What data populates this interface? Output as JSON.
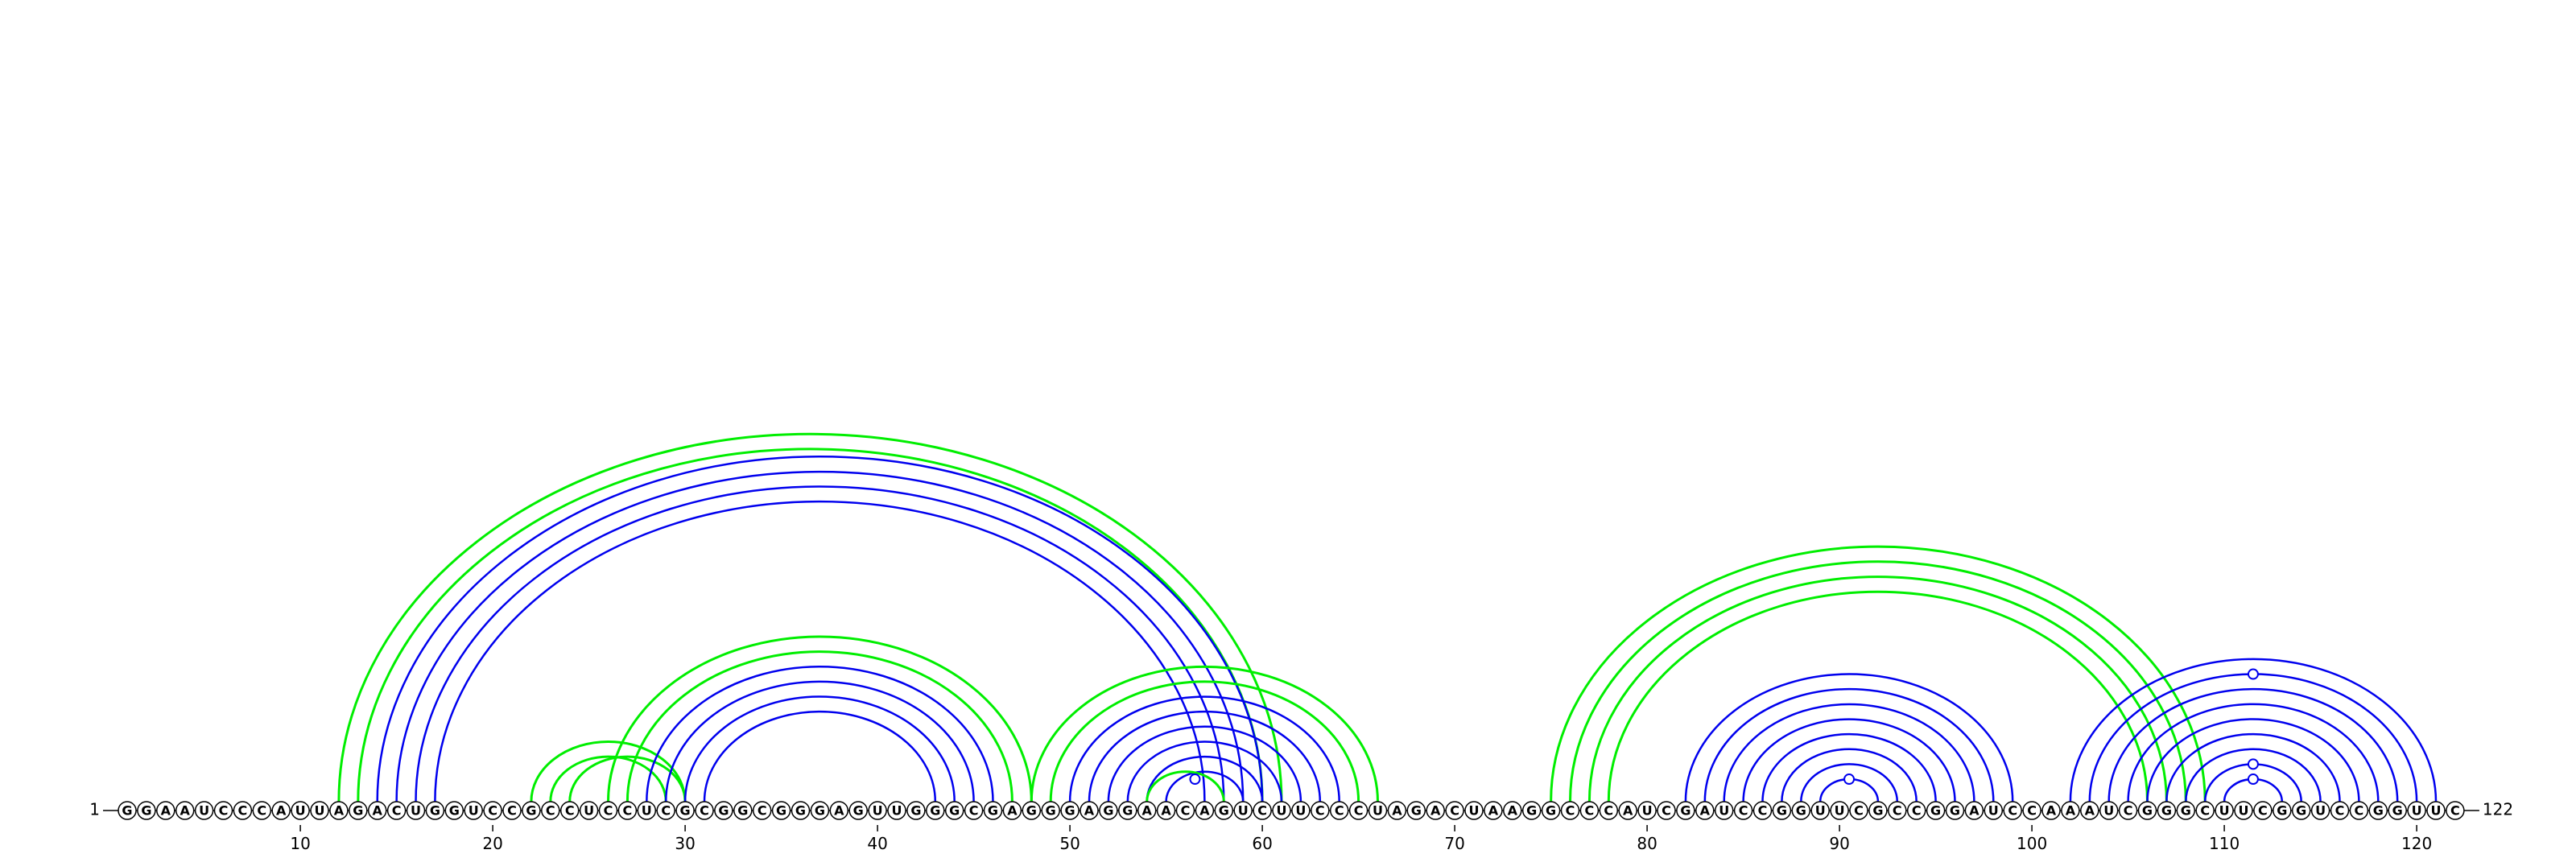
{
  "sequence": "GGAAUCCCAUUAGACUGGUCCGCCUCCUCGCGGCGGGAGUUGGGCGAGGGAGGAACAGUCUUCCCUAGACUAAGGCCCAUCGAUCCGGUUCGCCGGAUCCAAAUCGGGCUUCGGUCCGGUUC",
  "start_label": "1",
  "end_label": "122",
  "axis": {
    "ticks": [
      10,
      20,
      30,
      40,
      50,
      60,
      70,
      80,
      90,
      100,
      110,
      120
    ]
  },
  "colors": {
    "blue": "#0000ee",
    "green": "#00ee00",
    "nucleotide_fill": "#ffffff",
    "nucleotide_stroke": "#000000"
  },
  "arcs": [
    {
      "i": 12,
      "j": 61,
      "color": "green"
    },
    {
      "i": 13,
      "j": 60,
      "color": "green"
    },
    {
      "i": 14,
      "j": 60,
      "color": "blue"
    },
    {
      "i": 15,
      "j": 59,
      "color": "blue"
    },
    {
      "i": 16,
      "j": 58,
      "color": "blue"
    },
    {
      "i": 17,
      "j": 57,
      "color": "blue"
    },
    {
      "i": 22,
      "j": 30,
      "color": "green"
    },
    {
      "i": 23,
      "j": 29,
      "color": "green"
    },
    {
      "i": 24,
      "j": 30,
      "color": "green"
    },
    {
      "i": 26,
      "j": 48,
      "color": "green"
    },
    {
      "i": 27,
      "j": 47,
      "color": "green"
    },
    {
      "i": 28,
      "j": 46,
      "color": "blue"
    },
    {
      "i": 29,
      "j": 45,
      "color": "blue"
    },
    {
      "i": 30,
      "j": 44,
      "color": "blue"
    },
    {
      "i": 31,
      "j": 43,
      "color": "blue"
    },
    {
      "i": 48,
      "j": 66,
      "color": "green"
    },
    {
      "i": 49,
      "j": 65,
      "color": "green"
    },
    {
      "i": 50,
      "j": 64,
      "color": "blue"
    },
    {
      "i": 51,
      "j": 63,
      "color": "blue"
    },
    {
      "i": 52,
      "j": 62,
      "color": "blue"
    },
    {
      "i": 53,
      "j": 61,
      "color": "blue"
    },
    {
      "i": 54,
      "j": 60,
      "color": "blue"
    },
    {
      "i": 55,
      "j": 59,
      "color": "blue"
    },
    {
      "i": 54,
      "j": 58,
      "color": "green"
    },
    {
      "i": 75,
      "j": 109,
      "color": "green"
    },
    {
      "i": 76,
      "j": 108,
      "color": "green"
    },
    {
      "i": 77,
      "j": 107,
      "color": "green"
    },
    {
      "i": 78,
      "j": 106,
      "color": "green"
    },
    {
      "i": 82,
      "j": 99,
      "color": "blue"
    },
    {
      "i": 83,
      "j": 98,
      "color": "blue"
    },
    {
      "i": 84,
      "j": 97,
      "color": "blue"
    },
    {
      "i": 85,
      "j": 96,
      "color": "blue"
    },
    {
      "i": 86,
      "j": 95,
      "color": "blue"
    },
    {
      "i": 87,
      "j": 94,
      "color": "blue"
    },
    {
      "i": 88,
      "j": 93,
      "color": "blue"
    },
    {
      "i": 89,
      "j": 92,
      "color": "blue"
    },
    {
      "i": 102,
      "j": 121,
      "color": "blue"
    },
    {
      "i": 103,
      "j": 120,
      "color": "blue"
    },
    {
      "i": 104,
      "j": 119,
      "color": "blue"
    },
    {
      "i": 105,
      "j": 118,
      "color": "blue"
    },
    {
      "i": 106,
      "j": 117,
      "color": "blue"
    },
    {
      "i": 107,
      "j": 116,
      "color": "blue"
    },
    {
      "i": 108,
      "j": 115,
      "color": "blue"
    },
    {
      "i": 109,
      "j": 114,
      "color": "blue"
    },
    {
      "i": 110,
      "j": 113,
      "color": "blue"
    }
  ],
  "markers": [
    {
      "pos": 56.5,
      "arc": [
        55,
        58
      ]
    },
    {
      "pos": 90.5,
      "arc": [
        89,
        92
      ]
    },
    {
      "pos": 111.5,
      "arc": [
        110,
        113
      ]
    },
    {
      "pos": 111.5,
      "arc": [
        109,
        114
      ]
    },
    {
      "pos": 111.5,
      "arc": [
        103,
        120
      ]
    }
  ]
}
